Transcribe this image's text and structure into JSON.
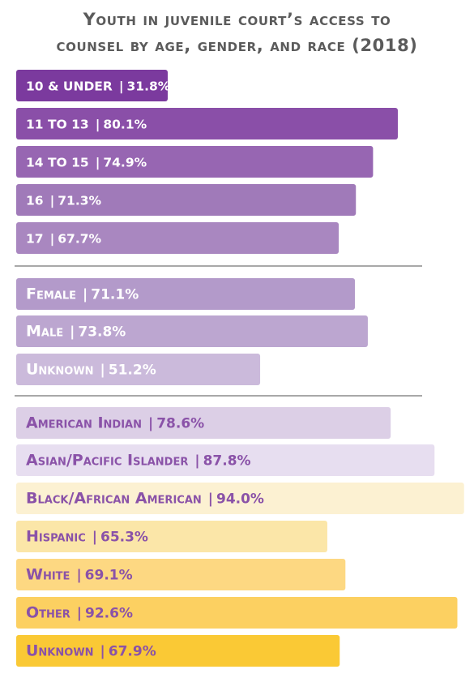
{
  "chart_data": {
    "type": "bar",
    "orientation": "horizontal",
    "title_lines": [
      "Youth in juvenile court’s access to",
      "counsel by age, gender, and race (2018)"
    ],
    "xlim": [
      0,
      100
    ],
    "groups": [
      {
        "name": "age",
        "categories": [
          "10 & UNDER",
          "11 TO 13",
          "14 TO 15",
          "16",
          "17"
        ],
        "values": [
          31.8,
          80.1,
          74.9,
          71.3,
          67.7
        ],
        "labels": [
          "31.8%",
          "80.1%",
          "74.9%",
          "71.3%",
          "67.7%"
        ],
        "colors": [
          "#7b3a9e",
          "#8a4fa8",
          "#9766b2",
          "#a07ab9",
          "#a987c0"
        ],
        "text_colors": [
          "#ffffff",
          "#ffffff",
          "#ffffff",
          "#ffffff",
          "#ffffff"
        ]
      },
      {
        "name": "gender",
        "categories": [
          "Female",
          "Male",
          "Unknown"
        ],
        "values": [
          71.1,
          73.8,
          51.2
        ],
        "labels": [
          "71.1%",
          "73.8%",
          "51.2%"
        ],
        "colors": [
          "#b39aca",
          "#bca6d0",
          "#cbbadb"
        ],
        "text_colors": [
          "#ffffff",
          "#ffffff",
          "#ffffff"
        ]
      },
      {
        "name": "race",
        "categories": [
          "American Indian",
          "Asian/Pacific Islander",
          "Black/African American",
          "Hispanic",
          "White",
          "Other",
          "Unknown"
        ],
        "values": [
          78.6,
          87.8,
          94.0,
          65.3,
          69.1,
          92.6,
          67.9
        ],
        "labels": [
          "78.6%",
          "87.8%",
          "94.0%",
          "65.3%",
          "69.1%",
          "92.6%",
          "67.9%"
        ],
        "colors": [
          "#dccfe6",
          "#e7def0",
          "#fcf1d2",
          "#fbe6a8",
          "#fdd882",
          "#fcd061",
          "#fac935"
        ],
        "text_colors": [
          "#8a52a8",
          "#8a52a8",
          "#8a52a8",
          "#8a52a8",
          "#8a52a8",
          "#8a52a8",
          "#8a52a8"
        ]
      }
    ],
    "divider_color": "#8c8c8c"
  }
}
